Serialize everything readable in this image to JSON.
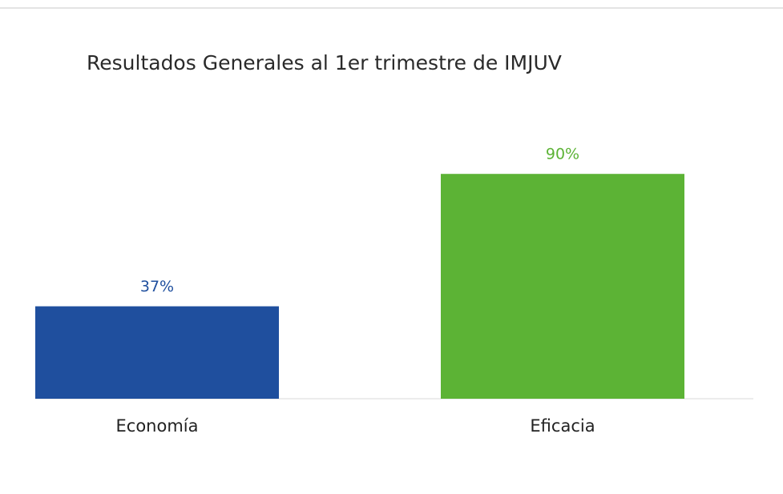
{
  "chart_data": {
    "type": "bar",
    "title": "Resultados Generales al 1er trimestre de IMJUV",
    "categories": [
      "Economía",
      "Eficacia"
    ],
    "values": [
      37,
      90
    ],
    "value_labels": [
      "37%",
      "90%"
    ],
    "colors": [
      "#1f4f9e",
      "#5cb335"
    ]
  }
}
